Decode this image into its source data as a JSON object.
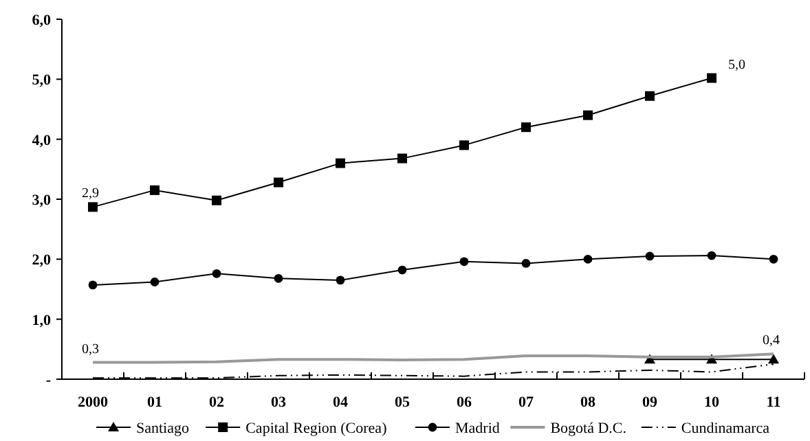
{
  "chart_data": {
    "type": "line",
    "categories": [
      "2000",
      "01",
      "02",
      "03",
      "04",
      "05",
      "06",
      "07",
      "08",
      "09",
      "10",
      "11"
    ],
    "ylim": [
      0,
      6
    ],
    "yticks": [
      {
        "value": 0,
        "label": "-"
      },
      {
        "value": 1,
        "label": "1,0"
      },
      {
        "value": 2,
        "label": "2,0"
      },
      {
        "value": 3,
        "label": "3,0"
      },
      {
        "value": 4,
        "label": "4,0"
      },
      {
        "value": 5,
        "label": "5,0"
      },
      {
        "value": 6,
        "label": "6,0"
      }
    ],
    "grid": false,
    "legend": "bottom",
    "series": [
      {
        "name": "Santiago",
        "color": "#000000",
        "marker": "triangle",
        "line_style": "solid",
        "values": [
          null,
          null,
          null,
          null,
          null,
          null,
          null,
          null,
          null,
          0.33,
          0.33,
          0.33
        ]
      },
      {
        "name": "Capital Region (Corea)",
        "color": "#000000",
        "marker": "square",
        "line_style": "solid",
        "values": [
          2.87,
          3.15,
          2.98,
          3.28,
          3.6,
          3.68,
          3.9,
          4.2,
          4.4,
          4.72,
          5.02,
          null
        ]
      },
      {
        "name": "Madrid",
        "color": "#000000",
        "marker": "circle",
        "line_style": "solid",
        "values": [
          1.57,
          1.62,
          1.76,
          1.68,
          1.65,
          1.82,
          1.96,
          1.93,
          2.0,
          2.05,
          2.06,
          2.0
        ]
      },
      {
        "name": "Bogotá D.C.",
        "color": "#999999",
        "marker": "none",
        "line_style": "solid",
        "values": [
          0.28,
          0.28,
          0.29,
          0.33,
          0.33,
          0.32,
          0.33,
          0.39,
          0.39,
          0.37,
          0.37,
          0.42
        ]
      },
      {
        "name": "Cundinamarca",
        "color": "#000000",
        "marker": "none",
        "line_style": "dashed",
        "values": [
          0.02,
          0.02,
          0.02,
          0.06,
          0.07,
          0.06,
          0.05,
          0.12,
          0.12,
          0.15,
          0.12,
          0.25
        ]
      }
    ],
    "annotations": [
      {
        "text": "2,9",
        "x": "2000",
        "y": 2.87
      },
      {
        "text": "5,0",
        "x": "10",
        "y": 5.02
      },
      {
        "text": "0,3",
        "x": "2000",
        "y": 0.28
      },
      {
        "text": "0,4",
        "x": "11",
        "y": 0.42
      }
    ]
  }
}
